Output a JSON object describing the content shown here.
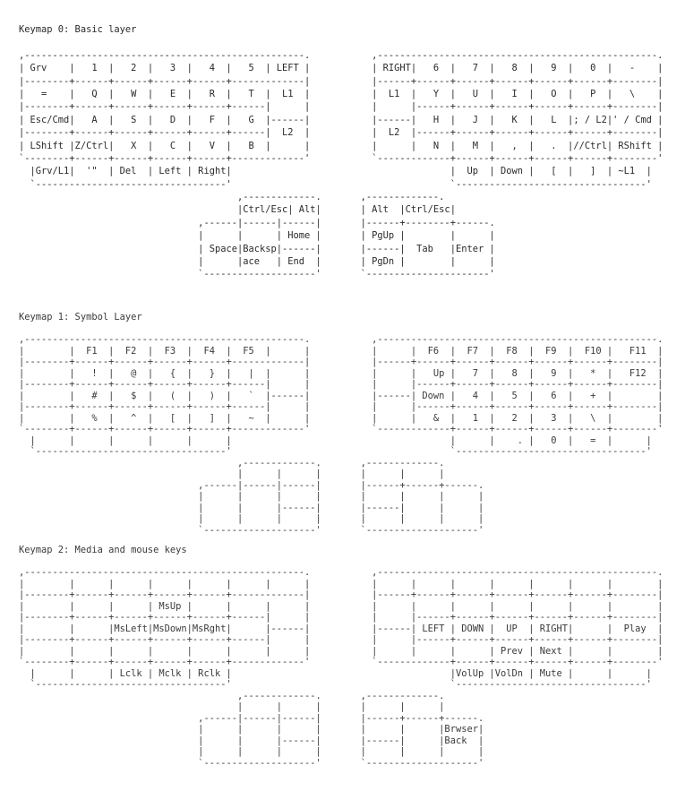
{
  "keymaps": [
    {
      "title": "Keymap 0: Basic layer",
      "lines": [
        "",
        ",--------------------------------------------------.           ,--------------------------------------------------.",
        "| Grv    |   1  |   2  |   3  |   4  |   5  | LEFT |           | RIGHT|   6  |   7  |   8  |   9  |   0  |   -    |",
        "|--------+------+------+------+------+-------------|           |------+------+------+------+------+------+--------|",
        "|   =    |   Q  |   W  |   E  |   R  |   T  |  L1  |           |  L1  |   Y  |   U  |   I  |   O  |   P  |   \\    |",
        "|--------+------+------+------+------+------|      |           |      |------+------+------+------+------+--------|",
        "| Esc/Cmd|   A  |   S  |   D  |   F  |   G  |------|           |------|   H  |   J  |   K  |   L  |; / L2|' / Cmd |",
        "|--------+------+------+------+------+------|  L2  |           |  L2  |------+------+------+------+------+--------|",
        "| LShift |Z/Ctrl|   X  |   C  |   V  |   B  |      |           |      |   N  |   M  |   ,  |   .  |//Ctrl| RShift |",
        "`--------+------+------+------+------+-------------'           `-------------+------+------+------+------+--------'",
        "  |Grv/L1|  '\"  | Del  | Left | Right|                                       |  Up  | Down |   [  |   ]  | ~L1  |",
        "  `----------------------------------'                                       `----------------------------------'",
        "                                       ,-------------.       ,-------------.",
        "                                       |Ctrl/Esc| Alt|       | Alt  |Ctrl/Esc|",
        "                                ,------|------|------|       |------+--------+------.",
        "                                |      |      | Home |       | PgUp |        |      |",
        "                                | Space|Backsp|------|       |------|  Tab   |Enter |",
        "                                |      |ace   | End  |       | PgDn |        |      |",
        "                                `--------------------'       `----------------------'"
      ]
    },
    {
      "title": "Keymap 1: Symbol Layer",
      "lines": [
        "",
        ",--------------------------------------------------.           ,--------------------------------------------------.",
        "|        |  F1  |  F2  |  F3  |  F4  |  F5  |      |           |      |  F6  |  F7  |  F8  |  F9  |  F10 |   F11  |",
        "|--------+------+------+------+------+-------------|           |------+------+------+------+------+------+--------|",
        "|        |   !  |   @  |   {  |   }  |   |  |      |           |      |   Up |   7  |   8  |   9  |   *  |   F12  |",
        "|--------+------+------+------+------+------|      |           |      |------+------+------+------+------+--------|",
        "|        |   #  |   $  |   (  |   )  |   `  |------|           |------| Down |   4  |   5  |   6  |   +  |        |",
        "|--------+------+------+------+------+------|      |           |      |------+------+------+------+------+--------|",
        "|        |   %  |   ^  |   [  |   ]  |   ~  |      |           |      |   &  |   1  |   2  |   3  |   \\  |        |",
        "`--------+------+------+------+------+-------------'           `-------------+------+------+------+------+--------'",
        "  |      |      |      |      |      |                                       |      |    . |   0  |   =  |      |",
        "  `----------------------------------'                                       `----------------------------------'",
        "                                       ,-------------.       ,-------------.",
        "                                       |      |      |       |      |      |",
        "                                ,------|------|------|       |------+------+------.",
        "                                |      |      |      |       |      |      |      |",
        "                                |      |      |------|       |------|      |      |",
        "                                |      |      |      |       |      |      |      |",
        "                                `--------------------'       `--------------------'"
      ]
    },
    {
      "title": "Keymap 2: Media and mouse keys",
      "lines": [
        "",
        ",--------------------------------------------------.           ,--------------------------------------------------.",
        "|        |      |      |      |      |      |      |           |      |      |      |      |      |      |        |",
        "|--------+------+------+------+------+-------------|           |------+------+------+------+------+------+--------|",
        "|        |      |      | MsUp |      |      |      |           |      |      |      |      |      |      |        |",
        "|--------+------+------+------+------+------|      |           |      |------+------+------+------+------+--------|",
        "|        |      |MsLeft|MsDown|MsRght|      |------|           |------| LEFT | DOWN |  UP  | RIGHT|      |  Play  |",
        "|--------+------+------+------+------+------|      |           |      |------+------+------+------+------+--------|",
        "|        |      |      |      |      |      |      |           |      |      |      | Prev | Next |      |        |",
        "`--------+------+------+------+------+-------------'           `-------------+------+------+------+------+--------'",
        "  |      |      | Lclk | Mclk | Rclk |                                       |VolUp |VolDn | Mute |      |      |",
        "  `----------------------------------'                                       `----------------------------------'",
        "                                       ,-------------.       ,-------------.",
        "                                       |      |      |       |      |      |",
        "                                ,------|------|------|       |------+------+------.",
        "                                |      |      |      |       |      |      |Brwser|",
        "                                |      |      |------|       |------|      |Back  |",
        "                                |      |      |      |       |      |      |      |",
        "                                `--------------------'       `--------------------'"
      ]
    }
  ]
}
